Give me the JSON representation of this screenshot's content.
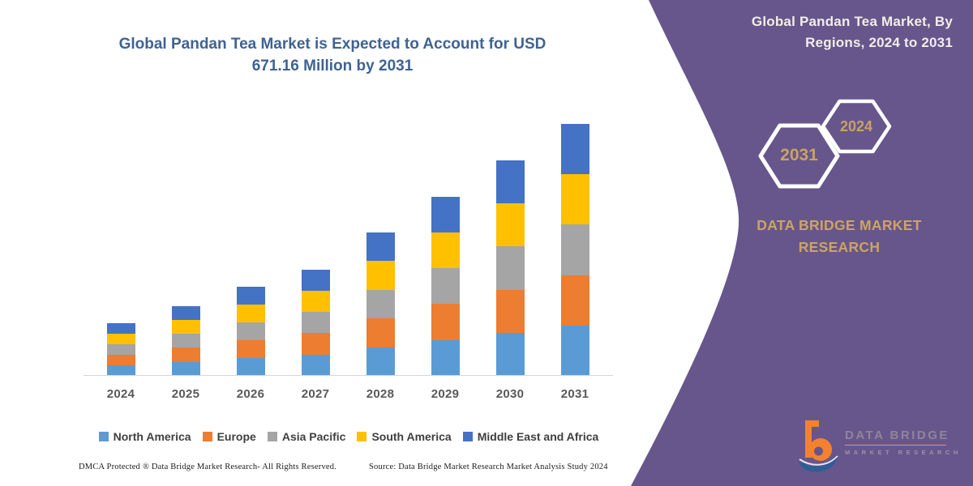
{
  "chart": {
    "title": "Global Pandan Tea Market is Expected to Account for USD 671.16 Million by 2031",
    "title_color": "#3F6292"
  },
  "chart_data": {
    "type": "bar",
    "stacked": true,
    "title": "Global Pandan Tea Market is Expected to Account for USD 671.16 Million by 2031",
    "xlabel": "",
    "ylabel": "USD Million",
    "y_axis_shown": false,
    "grid": false,
    "legend_position": "bottom",
    "categories": [
      "2024",
      "2025",
      "2026",
      "2027",
      "2028",
      "2029",
      "2030",
      "2031"
    ],
    "series": [
      {
        "name": "North America",
        "color": "#5B9BD5",
        "values": [
          28.1,
          37.4,
          47.5,
          56.8,
          76.4,
          95.5,
          114.7,
          134.23
        ]
      },
      {
        "name": "Europe",
        "color": "#ED7D31",
        "values": [
          28.1,
          37.4,
          47.5,
          56.8,
          76.4,
          95.5,
          114.7,
          134.23
        ]
      },
      {
        "name": "Asia Pacific",
        "color": "#A5A5A5",
        "values": [
          28.1,
          37.4,
          47.5,
          56.8,
          76.4,
          95.5,
          114.7,
          134.23
        ]
      },
      {
        "name": "South America",
        "color": "#FFC000",
        "values": [
          28.1,
          37.4,
          47.5,
          56.8,
          76.4,
          95.5,
          114.7,
          134.23
        ]
      },
      {
        "name": "Middle East and Africa",
        "color": "#4472C4",
        "values": [
          28.1,
          37.4,
          47.5,
          56.8,
          76.4,
          95.5,
          114.7,
          134.23
        ]
      }
    ],
    "totals_usd_million_estimated": [
      140.3,
      187.1,
      237.4,
      283.8,
      382.0,
      477.6,
      573.4,
      671.16
    ]
  },
  "side_panel": {
    "background": "#67568C",
    "heading": "Global Pandan Tea Market, By Regions, 2024 to 2031",
    "heading_color": "#F1EEE8",
    "hexagons": [
      {
        "label": "2031"
      },
      {
        "label": "2024"
      }
    ],
    "hexagon_border_color": "#FFFFFF",
    "accent_text_color": "#CDA461",
    "brand_caption": "DATA BRIDGE MARKET RESEARCH"
  },
  "logo": {
    "line1": "DATA BRIDGE",
    "line2": "MARKET RESEARCH",
    "orange": "#F5812E",
    "blue": "#2E5E96"
  },
  "footer": {
    "left": "DMCA Protected ® Data Bridge Market Research-  All Rights Reserved.",
    "right": "Source: Data Bridge Market Research  Market Analysis Study 2024"
  }
}
